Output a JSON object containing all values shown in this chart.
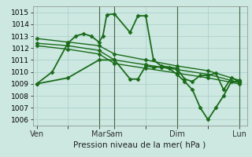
{
  "background_color": "#cce8e0",
  "grid_color": "#aacccc",
  "line_color": "#1a6b1a",
  "xlabel": "Pression niveau de la mer( hPa )",
  "ylim": [
    1005.5,
    1015.5
  ],
  "yticks": [
    1006,
    1007,
    1008,
    1009,
    1010,
    1011,
    1012,
    1013,
    1014,
    1015
  ],
  "xtick_labels": [
    "Ven",
    "",
    "Mar",
    "Sam",
    "",
    "Dim",
    "",
    "Lun"
  ],
  "xtick_positions": [
    0,
    16,
    32,
    40,
    56,
    72,
    88,
    104
  ],
  "vline_positions": [
    32,
    40,
    72,
    104
  ],
  "series": [
    {
      "x": [
        0,
        8,
        16,
        20,
        24,
        28,
        32,
        34,
        36,
        40,
        48,
        52,
        56,
        60,
        64,
        68,
        72,
        76,
        80,
        84,
        88,
        92,
        96,
        100,
        104
      ],
      "y": [
        1009.0,
        1010.0,
        1012.4,
        1013.0,
        1013.2,
        1013.0,
        1012.5,
        1013.0,
        1014.8,
        1014.85,
        1013.3,
        1014.7,
        1014.7,
        1011.0,
        1010.5,
        1010.4,
        1010.3,
        1009.4,
        1009.2,
        1009.7,
        1009.7,
        1009.9,
        1008.5,
        1009.5,
        1009.2
      ],
      "marker": "D",
      "markersize": 2.5,
      "linewidth": 1.3
    },
    {
      "x": [
        0,
        16,
        32,
        40,
        56,
        72,
        88,
        104
      ],
      "y": [
        1012.8,
        1012.5,
        1012.2,
        1011.5,
        1011.0,
        1010.5,
        1010.1,
        1009.3
      ],
      "marker": "D",
      "markersize": 2.5,
      "linewidth": 1.0
    },
    {
      "x": [
        0,
        16,
        32,
        40,
        56,
        72,
        88,
        104
      ],
      "y": [
        1012.4,
        1012.2,
        1011.8,
        1011.0,
        1010.6,
        1010.2,
        1009.8,
        1009.1
      ],
      "marker": "D",
      "markersize": 2.5,
      "linewidth": 1.0
    },
    {
      "x": [
        0,
        16,
        32,
        40,
        56,
        72,
        88,
        104
      ],
      "y": [
        1012.2,
        1011.9,
        1011.5,
        1010.7,
        1010.3,
        1009.9,
        1009.5,
        1009.0
      ],
      "marker": "D",
      "markersize": 2.5,
      "linewidth": 1.0
    },
    {
      "x": [
        0,
        16,
        32,
        40,
        48,
        52,
        56,
        60,
        64,
        68,
        72,
        76,
        80,
        84,
        88,
        92,
        96,
        100,
        104
      ],
      "y": [
        1009.0,
        1009.5,
        1011.0,
        1011.0,
        1009.4,
        1009.4,
        1010.5,
        1010.4,
        1010.4,
        1010.3,
        1009.8,
        1009.2,
        1008.5,
        1007.0,
        1006.0,
        1007.0,
        1008.0,
        1009.2,
        1009.2
      ],
      "marker": "D",
      "markersize": 2.5,
      "linewidth": 1.3
    }
  ]
}
